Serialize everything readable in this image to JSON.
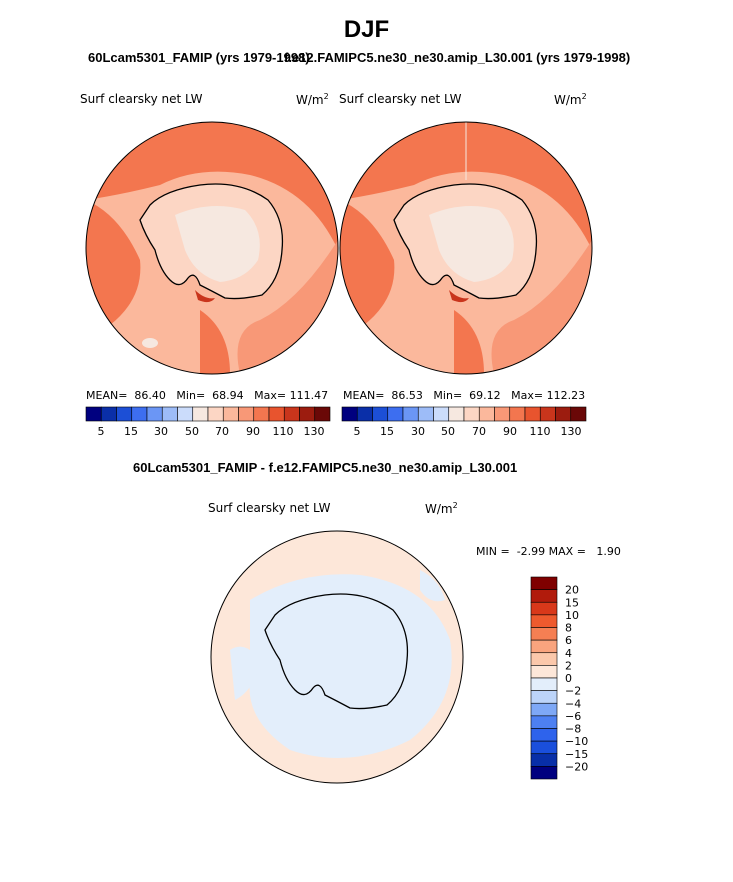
{
  "page": {
    "title": "DJF"
  },
  "colors": {
    "abs_palette": [
      "#00007f",
      "#0a2fa8",
      "#1c4fd6",
      "#3d6ef0",
      "#6b96f5",
      "#9dbcf8",
      "#cbdcfb",
      "#f6e8e0",
      "#fcd6c4",
      "#fbb89c",
      "#f89877",
      "#f3764f",
      "#e8542e",
      "#c9351c",
      "#9c1c0f",
      "#6a0807"
    ],
    "diff_palette": [
      "#00007f",
      "#082fa8",
      "#1a4fdc",
      "#2e63ec",
      "#4d80f2",
      "#7ea8f6",
      "#bcd4f9",
      "#e3eefb",
      "#fde7d9",
      "#fbc8ab",
      "#f9a47e",
      "#f57f53",
      "#ee5a2e",
      "#d9381a",
      "#b11b0c",
      "#7f0000"
    ],
    "coast": "#000000"
  },
  "chart_data": [
    {
      "type": "heatmap",
      "map": "polar-stereographic-south",
      "title": "60Lcam5301_FAMIP (yrs 1979-1998)",
      "variable_label": "Surf clearsky net LW",
      "units": "W/m",
      "units_exp": "2",
      "stats": {
        "mean_label": "MEAN=",
        "mean": "86.40",
        "min_label": "Min=",
        "min": "68.94",
        "max_label": "Max=",
        "max": "111.47"
      },
      "colorbar": {
        "orientation": "horizontal",
        "tick_labels": [
          "5",
          "15",
          "30",
          "50",
          "70",
          "90",
          "110",
          "130"
        ]
      }
    },
    {
      "type": "heatmap",
      "map": "polar-stereographic-south",
      "title": "f.e12.FAMIPC5.ne30_ne30.amip_L30.001 (yrs 1979-1998)",
      "variable_label": "Surf clearsky net LW",
      "units": "W/m",
      "units_exp": "2",
      "stats": {
        "mean_label": "MEAN=",
        "mean": "86.53",
        "min_label": "Min=",
        "min": "69.12",
        "max_label": "Max=",
        "max": "112.23"
      },
      "colorbar": {
        "orientation": "horizontal",
        "tick_labels": [
          "5",
          "15",
          "30",
          "50",
          "70",
          "90",
          "110",
          "130"
        ]
      }
    },
    {
      "type": "heatmap",
      "map": "polar-stereographic-south",
      "title": "60Lcam5301_FAMIP - f.e12.FAMIPC5.ne30_ne30.amip_L30.001",
      "variable_label": "Surf clearsky net LW",
      "units": "W/m",
      "units_exp": "2",
      "stats": {
        "min_label": "MIN =",
        "min": "-2.99",
        "max_label": "MAX =",
        "max": "1.90"
      },
      "colorbar": {
        "orientation": "vertical",
        "tick_labels": [
          "20",
          "15",
          "10",
          "8",
          "6",
          "4",
          "2",
          "0",
          "−2",
          "−4",
          "−6",
          "−8",
          "−10",
          "−15",
          "−20"
        ]
      }
    }
  ]
}
